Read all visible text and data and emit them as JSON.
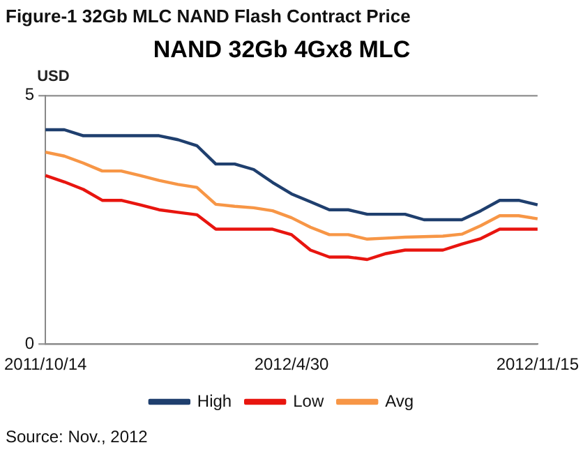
{
  "chart_data": {
    "type": "line",
    "title": "Figure-1 32Gb MLC NAND Flash Contract Price",
    "subtitle": "NAND 32Gb 4Gx8 MLC",
    "ylabel": "USD",
    "categories": [
      "2011/10/14",
      null,
      null,
      null,
      null,
      null,
      null,
      null,
      null,
      null,
      null,
      null,
      null,
      "2012/4/30",
      null,
      null,
      null,
      null,
      null,
      null,
      null,
      null,
      null,
      null,
      null,
      null,
      "2012/11/15"
    ],
    "series": [
      {
        "name": "High",
        "color": "#1f3f6e",
        "values": [
          4.31,
          4.31,
          4.19,
          4.19,
          4.19,
          4.19,
          4.19,
          4.11,
          3.99,
          3.62,
          3.62,
          3.51,
          3.25,
          3.02,
          2.86,
          2.7,
          2.7,
          2.61,
          2.61,
          2.61,
          2.5,
          2.5,
          2.5,
          2.68,
          2.89,
          2.89,
          2.8
        ]
      },
      {
        "name": "Low",
        "color": "#e8150f",
        "values": [
          3.39,
          3.26,
          3.11,
          2.89,
          2.89,
          2.8,
          2.7,
          2.65,
          2.6,
          2.31,
          2.31,
          2.31,
          2.31,
          2.2,
          1.89,
          1.75,
          1.75,
          1.7,
          1.82,
          1.89,
          1.89,
          1.89,
          2.01,
          2.12,
          2.31,
          2.31,
          2.31
        ]
      },
      {
        "name": "Avg",
        "color": "#f79646",
        "values": [
          3.86,
          3.78,
          3.64,
          3.48,
          3.48,
          3.39,
          3.29,
          3.21,
          3.15,
          2.81,
          2.77,
          2.74,
          2.68,
          2.54,
          2.35,
          2.2,
          2.2,
          2.11,
          2.13,
          2.15,
          2.16,
          2.17,
          2.21,
          2.38,
          2.58,
          2.58,
          2.52
        ]
      }
    ],
    "ylim": [
      0,
      5
    ],
    "yticks": [
      0,
      5
    ],
    "grid": "y",
    "legend": "bottom",
    "marker": "none",
    "line_style": "solid",
    "annotations": [
      "Source: Nov., 2012"
    ]
  }
}
